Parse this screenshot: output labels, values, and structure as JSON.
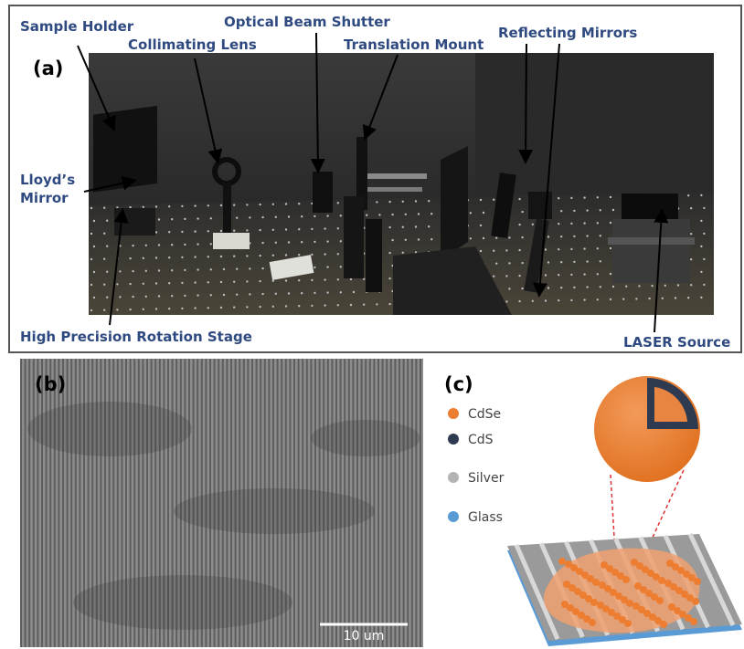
{
  "panel_a": {
    "label": "(a)",
    "callouts": {
      "sample_holder": "Sample Holder",
      "collimating_lens": "Collimating Lens",
      "optical_beam_shutter": "Optical Beam Shutter",
      "translation_mount": "Translation Mount",
      "reflecting_mirrors": "Reflecting Mirrors",
      "lloyds_mirror": [
        "Lloyd’s",
        "Mirror"
      ],
      "rotation_stage": "High Precision Rotation Stage",
      "laser_source": "LASER Source"
    }
  },
  "panel_b": {
    "label": "(b)",
    "scale_bar": "10 um"
  },
  "panel_c": {
    "label": "(c)",
    "legend": [
      {
        "name": "CdSe",
        "color": "#ed7d31"
      },
      {
        "name": "CdS",
        "color": "#2e3a50"
      },
      {
        "name": "Silver",
        "color": "#b4b4b4"
      },
      {
        "name": "Glass",
        "color": "#5b9bd5"
      }
    ]
  }
}
